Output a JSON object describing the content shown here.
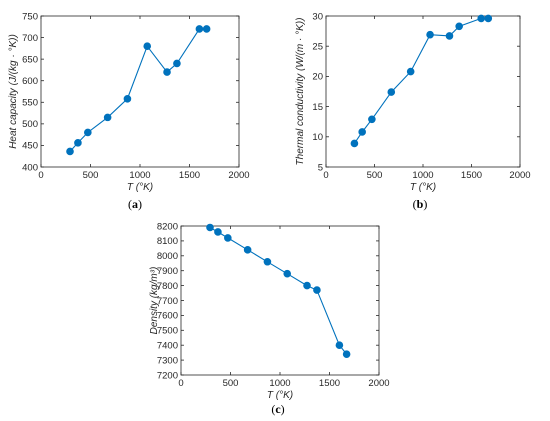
{
  "colors": {
    "series": "#0072BD",
    "axes": "#262626"
  },
  "chart_data": [
    {
      "type": "line",
      "panel": "a",
      "caption_letter": "a",
      "xlabel": "T (°K)",
      "ylabel": "Heat capacity (J/(kg · °K))",
      "xlim": [
        0,
        2000
      ],
      "ylim": [
        400,
        750
      ],
      "xticks": [
        0,
        500,
        1000,
        1500,
        2000
      ],
      "yticks": [
        400,
        450,
        500,
        550,
        600,
        650,
        700,
        750
      ],
      "grid": false,
      "markers": "filled-circle",
      "x": [
        293,
        373,
        473,
        673,
        873,
        1073,
        1273,
        1373,
        1600,
        1673
      ],
      "y": [
        436,
        456,
        480,
        515,
        558,
        680,
        620,
        640,
        720,
        720
      ]
    },
    {
      "type": "line",
      "panel": "b",
      "caption_letter": "b",
      "xlabel": "T (°K)",
      "ylabel": "Thermal conductivity (W/(m · °K))",
      "xlim": [
        0,
        2000
      ],
      "ylim": [
        5,
        30
      ],
      "xticks": [
        0,
        500,
        1000,
        1500,
        2000
      ],
      "yticks": [
        5,
        10,
        15,
        20,
        25,
        30
      ],
      "grid": false,
      "markers": "filled-circle",
      "x": [
        293,
        373,
        473,
        673,
        873,
        1073,
        1273,
        1373,
        1600,
        1673
      ],
      "y": [
        8.9,
        10.8,
        12.9,
        17.4,
        20.8,
        26.9,
        26.7,
        28.3,
        29.6,
        29.6
      ]
    },
    {
      "type": "line",
      "panel": "c",
      "caption_letter": "c",
      "xlabel": "T (°K)",
      "ylabel": "Density (kg/m³)",
      "xlim": [
        0,
        2000
      ],
      "ylim": [
        7200,
        8200
      ],
      "xticks": [
        0,
        500,
        1000,
        1500,
        2000
      ],
      "yticks": [
        7200,
        7300,
        7400,
        7500,
        7600,
        7700,
        7800,
        7900,
        8000,
        8100,
        8200
      ],
      "grid": false,
      "markers": "filled-circle",
      "x": [
        293,
        373,
        473,
        673,
        873,
        1073,
        1273,
        1373,
        1600,
        1673
      ],
      "y": [
        8190,
        8160,
        8120,
        8040,
        7960,
        7880,
        7800,
        7770,
        7400,
        7340
      ]
    }
  ]
}
